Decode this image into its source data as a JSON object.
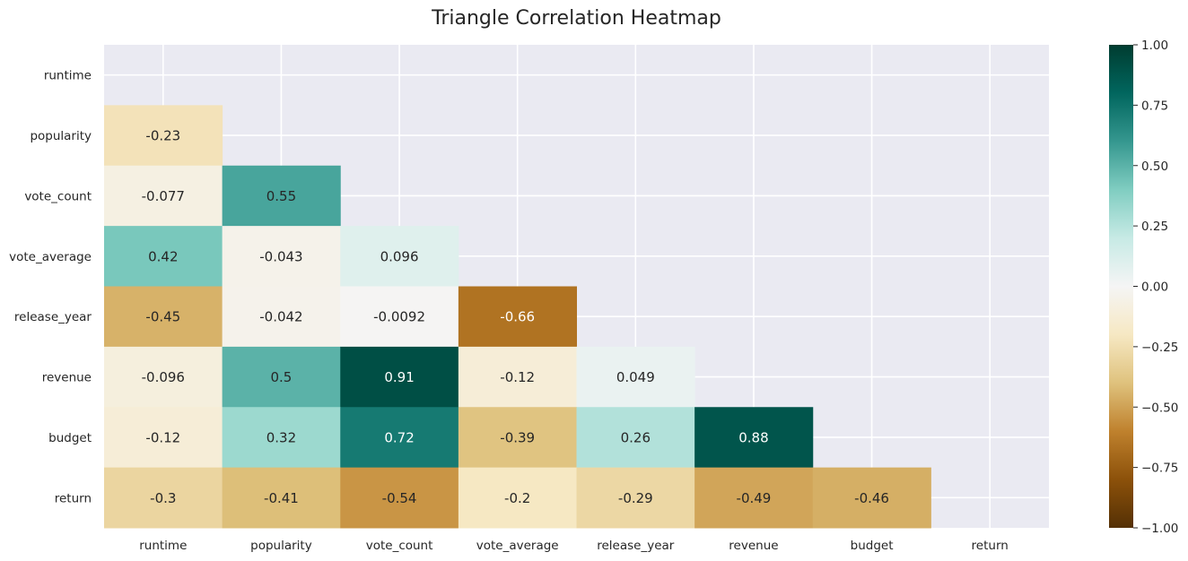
{
  "chart_data": {
    "type": "heatmap",
    "title": "Triangle Correlation Heatmap",
    "xlabel": "",
    "ylabel": "",
    "variables": [
      "runtime",
      "popularity",
      "vote_count",
      "vote_average",
      "release_year",
      "revenue",
      "budget",
      "return"
    ],
    "mask": "upper-triangle-including-diagonal",
    "matrix": [
      [
        null,
        null,
        null,
        null,
        null,
        null,
        null,
        null
      ],
      [
        -0.23,
        null,
        null,
        null,
        null,
        null,
        null,
        null
      ],
      [
        -0.077,
        0.55,
        null,
        null,
        null,
        null,
        null,
        null
      ],
      [
        0.42,
        -0.043,
        0.096,
        null,
        null,
        null,
        null,
        null
      ],
      [
        -0.45,
        -0.042,
        -0.0092,
        -0.66,
        null,
        null,
        null,
        null
      ],
      [
        -0.096,
        0.5,
        0.91,
        -0.12,
        0.049,
        null,
        null,
        null
      ],
      [
        -0.12,
        0.32,
        0.72,
        -0.39,
        0.26,
        0.88,
        null,
        null
      ],
      [
        -0.3,
        -0.41,
        -0.54,
        -0.2,
        -0.29,
        -0.49,
        -0.46,
        null
      ]
    ],
    "colorbar": {
      "vmin": -1,
      "vmax": 1,
      "colormap": "BrBG",
      "ticks": [
        "1.00",
        "0.75",
        "0.50",
        "0.25",
        "0.00",
        "−0.25",
        "−0.50",
        "−0.75",
        "−1.00"
      ]
    },
    "grid": true,
    "background": "#eaeaf2",
    "colors": {
      "stops": [
        "#543005",
        "#8c510a",
        "#bf812d",
        "#dfc27d",
        "#f6e8c3",
        "#f5f5f5",
        "#c7eae5",
        "#80cdc1",
        "#35978f",
        "#01665e",
        "#003c30"
      ]
    }
  }
}
